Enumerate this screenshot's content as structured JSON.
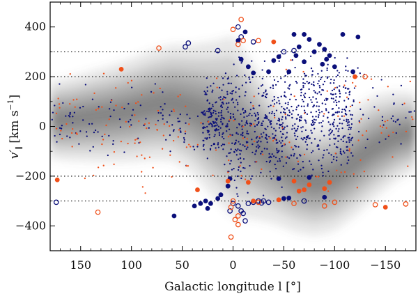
{
  "chart_data": {
    "type": "scatter",
    "title": "",
    "xlabel": "Galactic longitude l [°]",
    "ylabel_main": "v′",
    "ylabel_sub": "∥",
    "ylabel_units": "[km s",
    "ylabel_exp": "−1",
    "ylabel_close": "]",
    "xlim": [
      180,
      -180
    ],
    "ylim": [
      -500,
      500
    ],
    "x_ticks": [
      150,
      100,
      50,
      0,
      -50,
      -100,
      -150
    ],
    "x_tick_labels": [
      "150",
      "100",
      "50",
      "0",
      "−50",
      "−100",
      "−150"
    ],
    "y_ticks": [
      400,
      200,
      0,
      -200,
      -400
    ],
    "y_tick_labels": [
      "400",
      "200",
      "0",
      "−200",
      "−400"
    ],
    "reference_lines": [
      300,
      200,
      -200,
      -300
    ],
    "colors": {
      "navy": "#0b0f7a",
      "orange": "#f0501a",
      "density": "#6a6a6a"
    },
    "density_band": {
      "description": "grey density of the background model",
      "x": [
        180,
        160,
        140,
        120,
        100,
        80,
        60,
        40,
        20,
        0,
        -20,
        -40,
        -60,
        -80,
        -100,
        -120,
        -140,
        -160,
        -180
      ],
      "center": [
        25,
        30,
        40,
        50,
        65,
        85,
        95,
        70,
        30,
        0,
        -60,
        -130,
        -190,
        -220,
        -200,
        -140,
        -80,
        -40,
        -20
      ],
      "width": [
        60,
        65,
        70,
        75,
        80,
        85,
        90,
        100,
        120,
        140,
        120,
        100,
        90,
        85,
        85,
        85,
        80,
        70,
        60
      ]
    },
    "series": [
      {
        "name": "large filled navy",
        "marker": "filled-circle",
        "color": "#0b0f7a",
        "points": [
          [
            -60,
            370
          ],
          [
            -70,
            370
          ],
          [
            -75,
            350
          ],
          [
            -85,
            330
          ],
          [
            -90,
            310
          ],
          [
            -95,
            285
          ],
          [
            -108,
            370
          ],
          [
            -123,
            360
          ],
          [
            -65,
            320
          ],
          [
            -80,
            300
          ],
          [
            -45,
            280
          ],
          [
            -118,
            220
          ],
          [
            -100,
            240
          ],
          [
            -88,
            250
          ],
          [
            -70,
            260
          ],
          [
            -15,
            240
          ],
          [
            -20,
            215
          ],
          [
            -40,
            265
          ],
          [
            -8,
            270
          ],
          [
            -5,
            345
          ],
          [
            -12,
            380
          ],
          [
            -55,
            220
          ],
          [
            -35,
            220
          ],
          [
            -62,
            285
          ],
          [
            -92,
            270
          ],
          [
            22,
            -310
          ],
          [
            27,
            -300
          ],
          [
            25,
            -330
          ],
          [
            38,
            -320
          ],
          [
            32,
            -310
          ],
          [
            58,
            -360
          ],
          [
            15,
            -290
          ],
          [
            -50,
            -290
          ],
          [
            -55,
            -288
          ],
          [
            -90,
            -285
          ],
          [
            -75,
            -205
          ],
          [
            -45,
            -210
          ],
          [
            5,
            -240
          ],
          [
            12,
            -275
          ],
          [
            3,
            -210
          ]
        ]
      },
      {
        "name": "open navy",
        "marker": "open-circle",
        "color": "#0b0f7a",
        "points": [
          [
            -5,
            400
          ],
          [
            -8,
            360
          ],
          [
            -20,
            340
          ],
          [
            47,
            320
          ],
          [
            44,
            335
          ],
          [
            15,
            305
          ],
          [
            -50,
            300
          ],
          [
            -60,
            305
          ],
          [
            -70,
            -300
          ],
          [
            174,
            -305
          ],
          [
            -25,
            -300
          ],
          [
            -15,
            -310
          ],
          [
            -5,
            -320
          ],
          [
            -8,
            -340
          ],
          [
            -10,
            -350
          ],
          [
            -12,
            -380
          ],
          [
            -20,
            -305
          ],
          [
            -30,
            -300
          ],
          [
            0,
            -310
          ],
          [
            3,
            -340
          ],
          [
            -35,
            -305
          ],
          [
            -28,
            -308
          ]
        ]
      },
      {
        "name": "filled orange",
        "marker": "filled-circle",
        "color": "#f0501a",
        "points": [
          [
            110,
            230
          ],
          [
            -40,
            340
          ],
          [
            -120,
            200
          ],
          [
            173,
            -215
          ],
          [
            35,
            -255
          ],
          [
            5,
            -220
          ],
          [
            -15,
            -225
          ],
          [
            -60,
            -220
          ],
          [
            -70,
            -255
          ],
          [
            -75,
            -235
          ],
          [
            -90,
            -250
          ],
          [
            -95,
            -225
          ],
          [
            -150,
            -325
          ],
          [
            -65,
            -260
          ],
          [
            -45,
            -295
          ],
          [
            -20,
            -300
          ]
        ]
      },
      {
        "name": "open orange",
        "marker": "open-circle",
        "color": "#f0501a",
        "points": [
          [
            -8,
            430
          ],
          [
            0,
            390
          ],
          [
            -5,
            330
          ],
          [
            -10,
            345
          ],
          [
            -25,
            345
          ],
          [
            73,
            315
          ],
          [
            -130,
            200
          ],
          [
            133,
            -345
          ],
          [
            0,
            -300
          ],
          [
            2,
            -325
          ],
          [
            -2,
            -375
          ],
          [
            -5,
            -395
          ],
          [
            2,
            -445
          ],
          [
            -25,
            -305
          ],
          [
            -60,
            -310
          ],
          [
            -90,
            -320
          ],
          [
            -100,
            -305
          ],
          [
            -140,
            -315
          ],
          [
            -170,
            -312
          ],
          [
            -5,
            -360
          ]
        ]
      },
      {
        "name": "small navy dots",
        "marker": "dot",
        "color": "#0b0f7a",
        "generated": true,
        "count": 1050,
        "x_range": [
          180,
          -180
        ],
        "y_range": [
          -330,
          330
        ]
      },
      {
        "name": "small orange dots",
        "marker": "dot",
        "color": "#f0501a",
        "generated": true,
        "count": 190,
        "x_range": [
          180,
          -180
        ],
        "y_range": [
          -300,
          300
        ]
      }
    ]
  }
}
